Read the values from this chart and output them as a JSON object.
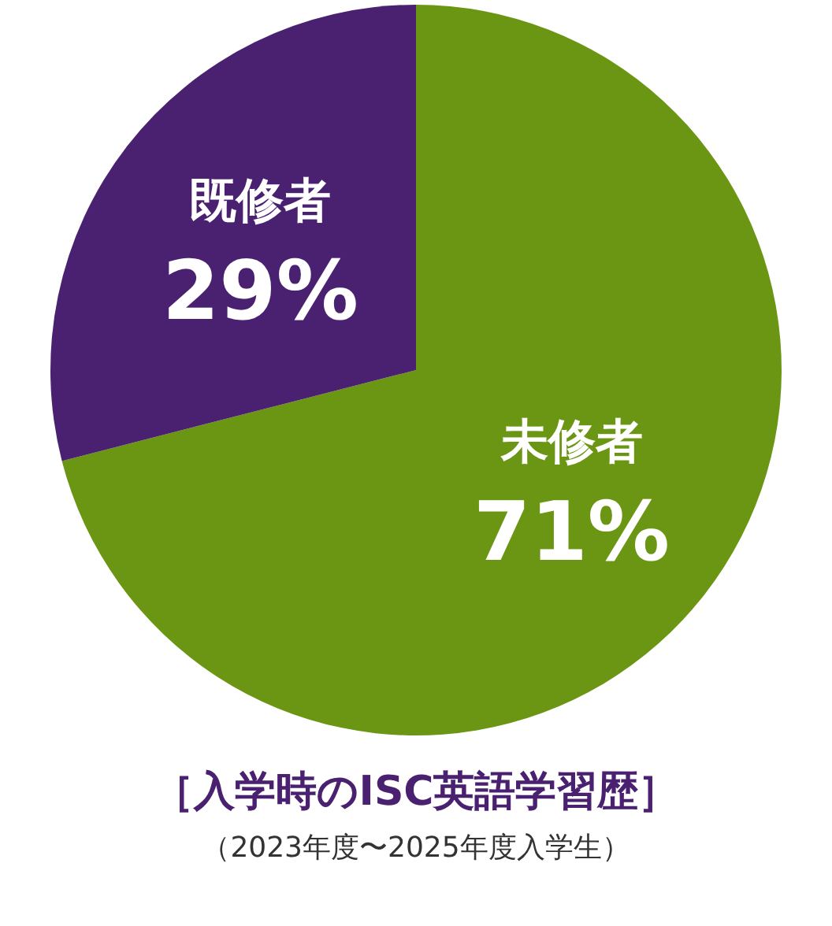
{
  "chart_data": {
    "type": "pie",
    "title": "［入学時のISC英語学習歴］",
    "subtitle": "（2023年度〜2025年度入学生）",
    "categories": [
      "未修者",
      "既修者"
    ],
    "values": [
      71,
      29
    ],
    "colors": [
      "#6a9613",
      "#4a2170"
    ],
    "value_labels": [
      "71%",
      "29%"
    ]
  }
}
